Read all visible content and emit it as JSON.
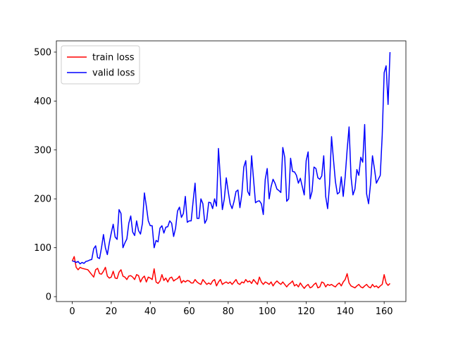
{
  "chart_data": {
    "type": "line",
    "x": [
      0,
      1,
      2,
      3,
      4,
      5,
      6,
      7,
      8,
      9,
      10,
      11,
      12,
      13,
      14,
      15,
      16,
      17,
      18,
      19,
      20,
      21,
      22,
      23,
      24,
      25,
      26,
      27,
      28,
      29,
      30,
      31,
      32,
      33,
      34,
      35,
      36,
      37,
      38,
      39,
      40,
      41,
      42,
      43,
      44,
      45,
      46,
      47,
      48,
      49,
      50,
      51,
      52,
      53,
      54,
      55,
      56,
      57,
      58,
      59,
      60,
      61,
      62,
      63,
      64,
      65,
      66,
      67,
      68,
      69,
      70,
      71,
      72,
      73,
      74,
      75,
      76,
      77,
      78,
      79,
      80,
      81,
      82,
      83,
      84,
      85,
      86,
      87,
      88,
      89,
      90,
      91,
      92,
      93,
      94,
      95,
      96,
      97,
      98,
      99,
      100,
      101,
      102,
      103,
      104,
      105,
      106,
      107,
      108,
      109,
      110,
      111,
      112,
      113,
      114,
      115,
      116,
      117,
      118,
      119,
      120,
      121,
      122,
      123,
      124,
      125,
      126,
      127,
      128,
      129,
      130,
      131,
      132,
      133,
      134,
      135,
      136,
      137,
      138,
      139,
      140,
      141,
      142,
      143,
      144,
      145,
      146,
      147,
      148,
      149,
      150,
      151,
      152,
      153,
      154,
      155,
      156,
      157,
      158,
      159,
      160,
      161,
      162,
      163
    ],
    "series": [
      {
        "name": "train loss",
        "color": "#ff0000",
        "values": [
          73,
          82,
          60,
          55,
          60,
          58,
          57,
          56,
          55,
          50,
          45,
          40,
          55,
          58,
          47,
          46,
          52,
          60,
          42,
          38,
          40,
          52,
          38,
          37,
          50,
          55,
          42,
          40,
          35,
          42,
          43,
          40,
          35,
          45,
          43,
          30,
          38,
          42,
          30,
          40,
          38,
          35,
          57,
          30,
          27,
          32,
          45,
          33,
          38,
          30,
          38,
          40,
          32,
          35,
          37,
          42,
          28,
          33,
          30,
          33,
          32,
          28,
          28,
          35,
          30,
          27,
          25,
          35,
          30,
          25,
          28,
          25,
          32,
          35,
          22,
          30,
          35,
          25,
          28,
          30,
          27,
          30,
          25,
          30,
          35,
          27,
          25,
          30,
          28,
          35,
          30,
          32,
          27,
          35,
          30,
          25,
          40,
          30,
          25,
          30,
          28,
          25,
          30,
          22,
          28,
          32,
          28,
          25,
          30,
          25,
          20,
          25,
          28,
          32,
          22,
          25,
          20,
          28,
          22,
          17,
          22,
          25,
          18,
          20,
          25,
          28,
          18,
          20,
          30,
          28,
          20,
          25,
          23,
          25,
          22,
          20,
          25,
          28,
          22,
          30,
          35,
          47,
          28,
          22,
          20,
          18,
          22,
          25,
          20,
          18,
          22,
          25,
          20,
          18,
          25,
          20,
          22,
          18,
          22,
          25,
          45,
          28,
          23,
          27
        ]
      },
      {
        "name": "valid loss",
        "color": "#0000ff",
        "values": [
          73,
          72,
          70,
          72,
          67,
          70,
          68,
          72,
          73,
          75,
          76,
          98,
          104,
          80,
          78,
          100,
          127,
          100,
          86,
          110,
          130,
          148,
          122,
          117,
          178,
          170,
          100,
          110,
          118,
          150,
          165,
          132,
          125,
          155,
          135,
          128,
          150,
          212,
          185,
          155,
          145,
          145,
          100,
          115,
          112,
          140,
          145,
          130,
          142,
          143,
          155,
          150,
          123,
          140,
          175,
          183,
          162,
          170,
          205,
          152,
          155,
          155,
          195,
          232,
          160,
          160,
          200,
          190,
          150,
          158,
          193,
          192,
          180,
          200,
          185,
          303,
          240,
          178,
          200,
          243,
          215,
          190,
          180,
          195,
          215,
          218,
          182,
          210,
          265,
          278,
          215,
          207,
          288,
          240,
          192,
          195,
          196,
          190,
          168,
          240,
          262,
          200,
          225,
          240,
          232,
          220,
          217,
          213,
          305,
          285,
          195,
          200,
          283,
          256,
          255,
          248,
          232,
          242,
          225,
          208,
          278,
          296,
          200,
          215,
          265,
          262,
          243,
          240,
          247,
          288,
          205,
          180,
          230,
          327,
          280,
          235,
          210,
          213,
          245,
          205,
          245,
          300,
          347,
          245,
          208,
          220,
          260,
          248,
          285,
          275,
          352,
          210,
          190,
          230,
          288,
          262,
          232,
          240,
          248,
          330,
          458,
          472,
          393,
          500
        ]
      }
    ],
    "xlim": [
      -8.15,
      171.15
    ],
    "ylim": [
      -10,
      523
    ],
    "xticks": [
      0,
      20,
      40,
      60,
      80,
      100,
      120,
      140,
      160
    ],
    "yticks": [
      0,
      100,
      200,
      300,
      400,
      500
    ],
    "legend": "upper left",
    "grid": false
  }
}
